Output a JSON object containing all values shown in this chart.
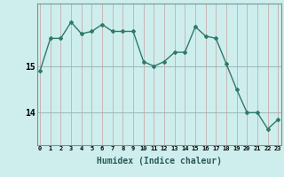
{
  "x": [
    0,
    1,
    2,
    3,
    4,
    5,
    6,
    7,
    8,
    9,
    10,
    11,
    12,
    13,
    14,
    15,
    16,
    17,
    18,
    19,
    20,
    21,
    22,
    23
  ],
  "y": [
    14.9,
    15.6,
    15.6,
    15.95,
    15.7,
    15.75,
    15.9,
    15.75,
    15.75,
    15.75,
    15.1,
    15.0,
    15.1,
    15.3,
    15.3,
    15.85,
    15.65,
    15.6,
    15.05,
    14.5,
    14.0,
    14.0,
    13.65,
    13.85
  ],
  "line_color": "#2d7a6a",
  "marker": "D",
  "marker_size": 2.0,
  "linewidth": 1.0,
  "bg_color": "#ceeeed",
  "hgrid_color": "#9ab8b8",
  "vgrid_color": "#c4a0a0",
  "xlabel": "Humidex (Indice chaleur)",
  "xlabel_fontsize": 7,
  "ytick_labels": [
    "14",
    "15"
  ],
  "ytick_vals": [
    14,
    15
  ],
  "ylim": [
    13.3,
    16.35
  ],
  "xlim": [
    -0.3,
    23.3
  ]
}
